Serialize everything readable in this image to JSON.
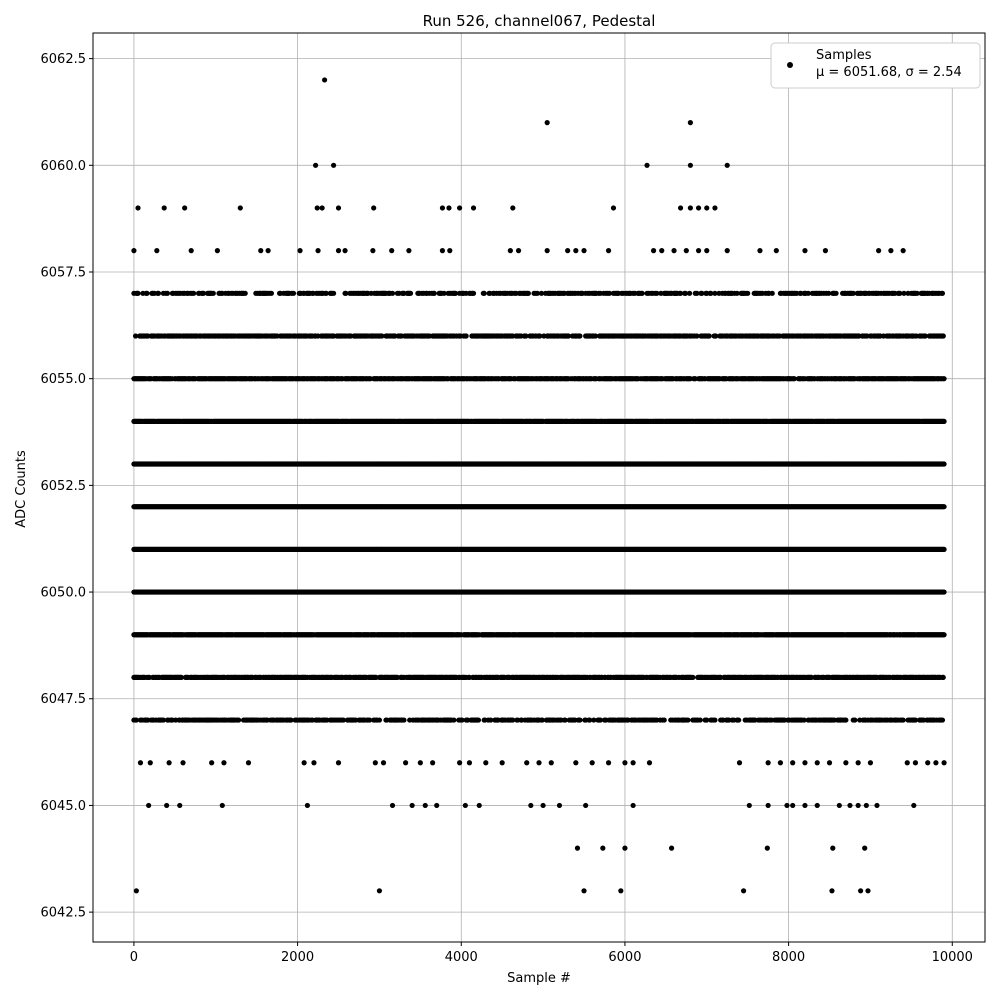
{
  "chart_data": {
    "type": "scatter",
    "title": "Run 526, channel067, Pedestal",
    "xlabel": "Sample #",
    "ylabel": "ADC Counts",
    "xlim": [
      -500,
      10400
    ],
    "ylim": [
      6041.8,
      6063.1
    ],
    "x_ticks": [
      0,
      2000,
      4000,
      6000,
      8000,
      10000
    ],
    "x_tick_labels": [
      "0",
      "2000",
      "4000",
      "6000",
      "8000",
      "10000"
    ],
    "y_ticks": [
      6042.5,
      6045.0,
      6047.5,
      6050.0,
      6052.5,
      6055.0,
      6057.5,
      6060.0,
      6062.5
    ],
    "y_tick_labels": [
      "6042.5",
      "6045.0",
      "6047.5",
      "6050.0",
      "6052.5",
      "6055.0",
      "6057.5",
      "6060.0",
      "6062.5"
    ],
    "grid": true,
    "legend": {
      "placement": "top-right",
      "entries": [
        "Samples",
        "μ = 6051.68, σ = 2.54"
      ]
    },
    "marker_color": "#000000",
    "series": [
      {
        "name": "Samples",
        "points": [
          [
            2330,
            6062
          ],
          [
            5050,
            6061
          ],
          [
            6800,
            6061
          ],
          [
            2220,
            6060
          ],
          [
            2440,
            6060
          ],
          [
            6270,
            6060
          ],
          [
            6800,
            6060
          ],
          [
            7250,
            6060
          ],
          [
            50,
            6059
          ],
          [
            370,
            6059
          ],
          [
            620,
            6059
          ],
          [
            1300,
            6059
          ],
          [
            2240,
            6059
          ],
          [
            2300,
            6059
          ],
          [
            2500,
            6059
          ],
          [
            2930,
            6059
          ],
          [
            3770,
            6059
          ],
          [
            3850,
            6059
          ],
          [
            3980,
            6059
          ],
          [
            4150,
            6059
          ],
          [
            4630,
            6059
          ],
          [
            5860,
            6059
          ],
          [
            6680,
            6059
          ],
          [
            6800,
            6059
          ],
          [
            6900,
            6059
          ],
          [
            7000,
            6059
          ],
          [
            7100,
            6059
          ],
          [
            0,
            6058
          ],
          [
            280,
            6058
          ],
          [
            700,
            6058
          ],
          [
            1020,
            6058
          ],
          [
            1550,
            6058
          ],
          [
            1640,
            6058
          ],
          [
            2030,
            6058
          ],
          [
            2250,
            6058
          ],
          [
            2500,
            6058
          ],
          [
            2580,
            6058
          ],
          [
            2920,
            6058
          ],
          [
            3150,
            6058
          ],
          [
            3360,
            6058
          ],
          [
            3770,
            6058
          ],
          [
            3860,
            6058
          ],
          [
            4600,
            6058
          ],
          [
            4700,
            6058
          ],
          [
            5050,
            6058
          ],
          [
            5300,
            6058
          ],
          [
            5400,
            6058
          ],
          [
            5500,
            6058
          ],
          [
            5800,
            6058
          ],
          [
            6350,
            6058
          ],
          [
            6450,
            6058
          ],
          [
            6600,
            6058
          ],
          [
            6750,
            6058
          ],
          [
            6900,
            6058
          ],
          [
            7000,
            6058
          ],
          [
            7250,
            6058
          ],
          [
            7650,
            6058
          ],
          [
            7850,
            6058
          ],
          [
            8200,
            6058
          ],
          [
            8450,
            6058
          ],
          [
            9100,
            6058
          ],
          [
            9250,
            6058
          ],
          [
            9400,
            6058
          ],
          [
            30,
            6043
          ],
          [
            3000,
            6043
          ],
          [
            5500,
            6043
          ],
          [
            5950,
            6043
          ],
          [
            7450,
            6043
          ],
          [
            8530,
            6043
          ],
          [
            8880,
            6043
          ],
          [
            8970,
            6043
          ],
          [
            5420,
            6044
          ],
          [
            5730,
            6044
          ],
          [
            6000,
            6044
          ],
          [
            6570,
            6044
          ],
          [
            7740,
            6044
          ],
          [
            8540,
            6044
          ],
          [
            8930,
            6044
          ],
          [
            180,
            6045
          ],
          [
            400,
            6045
          ],
          [
            560,
            6045
          ],
          [
            1080,
            6045
          ],
          [
            2120,
            6045
          ],
          [
            3160,
            6045
          ],
          [
            3400,
            6045
          ],
          [
            3560,
            6045
          ],
          [
            3700,
            6045
          ],
          [
            4050,
            6045
          ],
          [
            4220,
            6045
          ],
          [
            4850,
            6045
          ],
          [
            5000,
            6045
          ],
          [
            5200,
            6045
          ],
          [
            5520,
            6045
          ],
          [
            6100,
            6045
          ],
          [
            7520,
            6045
          ],
          [
            7750,
            6045
          ],
          [
            7980,
            6045
          ],
          [
            8050,
            6045
          ],
          [
            8200,
            6045
          ],
          [
            8350,
            6045
          ],
          [
            8620,
            6045
          ],
          [
            8750,
            6045
          ],
          [
            8850,
            6045
          ],
          [
            8950,
            6045
          ],
          [
            9080,
            6045
          ],
          [
            9530,
            6045
          ],
          [
            80,
            6046
          ],
          [
            200,
            6046
          ],
          [
            430,
            6046
          ],
          [
            600,
            6046
          ],
          [
            950,
            6046
          ],
          [
            1100,
            6046
          ],
          [
            1400,
            6046
          ],
          [
            2080,
            6046
          ],
          [
            2200,
            6046
          ],
          [
            2500,
            6046
          ],
          [
            2950,
            6046
          ],
          [
            3050,
            6046
          ],
          [
            3320,
            6046
          ],
          [
            3500,
            6046
          ],
          [
            3650,
            6046
          ],
          [
            3980,
            6046
          ],
          [
            4100,
            6046
          ],
          [
            4300,
            6046
          ],
          [
            4500,
            6046
          ],
          [
            4800,
            6046
          ],
          [
            4950,
            6046
          ],
          [
            5100,
            6046
          ],
          [
            5400,
            6046
          ],
          [
            5600,
            6046
          ],
          [
            5800,
            6046
          ],
          [
            6000,
            6046
          ],
          [
            6100,
            6046
          ],
          [
            6300,
            6046
          ],
          [
            7400,
            6046
          ],
          [
            7750,
            6046
          ],
          [
            7900,
            6046
          ],
          [
            8050,
            6046
          ],
          [
            8200,
            6046
          ],
          [
            8350,
            6046
          ],
          [
            8500,
            6046
          ],
          [
            8700,
            6046
          ],
          [
            8850,
            6046
          ],
          [
            9000,
            6046
          ],
          [
            9450,
            6046
          ],
          [
            9550,
            6046
          ],
          [
            9700,
            6046
          ],
          [
            9800,
            6046
          ],
          [
            9900,
            6046
          ]
        ],
        "dense_levels": [
          {
            "y": 6057,
            "density": 0.45
          },
          {
            "y": 6056,
            "density": 0.65
          },
          {
            "y": 6055,
            "density": 0.85
          },
          {
            "y": 6054,
            "density": 0.95
          },
          {
            "y": 6053,
            "density": 1.0
          },
          {
            "y": 6052,
            "density": 1.0
          },
          {
            "y": 6051,
            "density": 1.0
          },
          {
            "y": 6050,
            "density": 1.0
          },
          {
            "y": 6049,
            "density": 0.95
          },
          {
            "y": 6048,
            "density": 0.75
          },
          {
            "y": 6047,
            "density": 0.5
          }
        ],
        "x_range": [
          0,
          9900
        ]
      }
    ]
  }
}
